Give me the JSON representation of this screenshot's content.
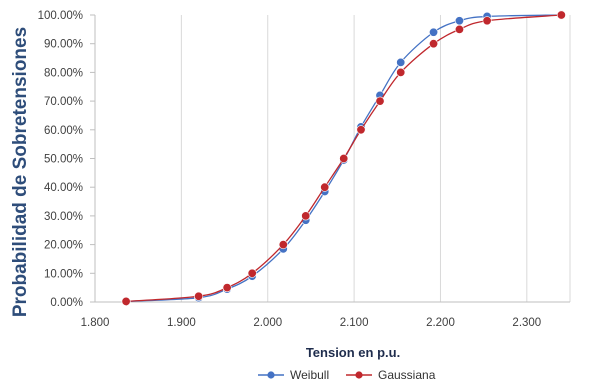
{
  "chart_data": {
    "type": "line",
    "xlabel": "Tension en p.u.",
    "ylabel": "Probabilidad de Sobretensiones",
    "xlim": [
      1.8,
      2.35
    ],
    "ylim": [
      0,
      100
    ],
    "x_ticks": [
      "1.800",
      "1.900",
      "2.000",
      "2.100",
      "2.200",
      "2.300"
    ],
    "x_tick_values": [
      1.8,
      1.9,
      2.0,
      2.1,
      2.2,
      2.3
    ],
    "y_ticks": [
      "0.00%",
      "10.00%",
      "20.00%",
      "30.00%",
      "40.00%",
      "50.00%",
      "60.00%",
      "70.00%",
      "80.00%",
      "90.00%",
      "100.00%"
    ],
    "y_tick_values": [
      0,
      10,
      20,
      30,
      40,
      50,
      60,
      70,
      80,
      90,
      100
    ],
    "grid": "vertical",
    "legend_position": "bottom",
    "series": [
      {
        "name": "Weibull",
        "color": "#4472c4",
        "points": [
          [
            1.836,
            0.2
          ],
          [
            1.92,
            1.5
          ],
          [
            1.953,
            4.5
          ],
          [
            1.982,
            9.0
          ],
          [
            2.018,
            18.5
          ],
          [
            2.044,
            28.5
          ],
          [
            2.066,
            38.5
          ],
          [
            2.088,
            49.5
          ],
          [
            2.108,
            61.0
          ],
          [
            2.13,
            72.0
          ],
          [
            2.154,
            83.5
          ],
          [
            2.192,
            94.0
          ],
          [
            2.222,
            98.0
          ],
          [
            2.254,
            99.5
          ],
          [
            2.34,
            100.0
          ]
        ]
      },
      {
        "name": "Gaussiana",
        "color": "#c0282d",
        "points": [
          [
            1.836,
            0.2
          ],
          [
            1.92,
            2.0
          ],
          [
            1.953,
            5.0
          ],
          [
            1.982,
            10.0
          ],
          [
            2.018,
            20.0
          ],
          [
            2.044,
            30.0
          ],
          [
            2.066,
            40.0
          ],
          [
            2.088,
            50.0
          ],
          [
            2.108,
            60.0
          ],
          [
            2.13,
            70.0
          ],
          [
            2.154,
            80.0
          ],
          [
            2.192,
            90.0
          ],
          [
            2.222,
            95.0
          ],
          [
            2.254,
            98.0
          ],
          [
            2.34,
            100.0
          ]
        ]
      }
    ]
  }
}
